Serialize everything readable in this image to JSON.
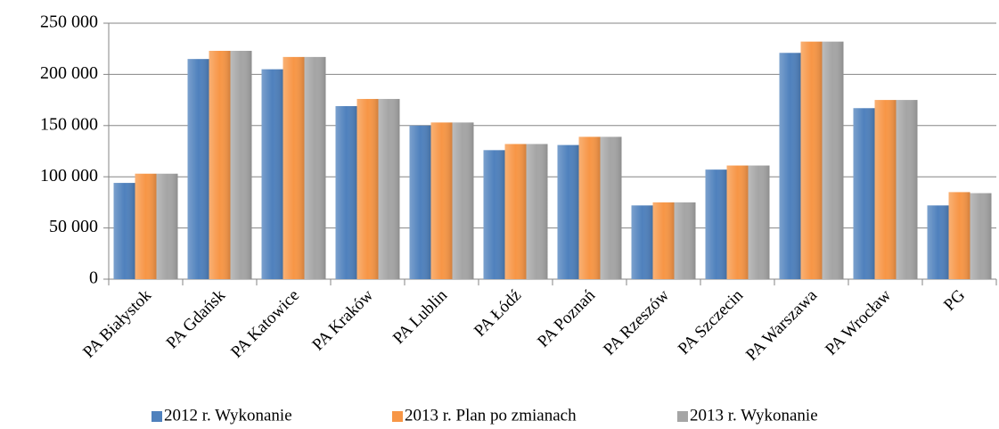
{
  "chart_data": {
    "type": "bar",
    "categories": [
      "PA Białystok",
      "PA Gdańsk",
      "PA Katowice",
      "PA Kraków",
      "PA Lublin",
      "PA Łódź",
      "PA Poznań",
      "PA Rzeszów",
      "PA Szczecin",
      "PA Warszawa",
      "PA Wrocław",
      "PG"
    ],
    "series": [
      {
        "name": "2012 r. Wykonanie",
        "color": "#4f81bd",
        "values": [
          94000,
          215000,
          205000,
          169000,
          150000,
          126000,
          131000,
          72000,
          107000,
          221000,
          167000,
          72000
        ]
      },
      {
        "name": "2013 r. Plan po zmianach",
        "color": "#f79646",
        "values": [
          103000,
          223000,
          217000,
          176000,
          153000,
          132000,
          139000,
          75000,
          111000,
          232000,
          175000,
          85000
        ]
      },
      {
        "name": "2013 r. Wykonanie",
        "color": "#a5a5a5",
        "values": [
          103000,
          223000,
          217000,
          176000,
          153000,
          132000,
          139000,
          75000,
          111000,
          232000,
          175000,
          84000
        ]
      }
    ],
    "ylim": [
      0,
      250000
    ],
    "yticks": [
      0,
      {
        "value": 50000,
        "label": "50 000"
      },
      {
        "value": 100000,
        "label": "100 000"
      },
      {
        "value": 150000,
        "label": "150 000"
      },
      {
        "value": 200000,
        "label": "200 000"
      },
      {
        "value": 250000,
        "label": "250 000"
      }
    ],
    "grid": true,
    "legend": "bottom"
  }
}
